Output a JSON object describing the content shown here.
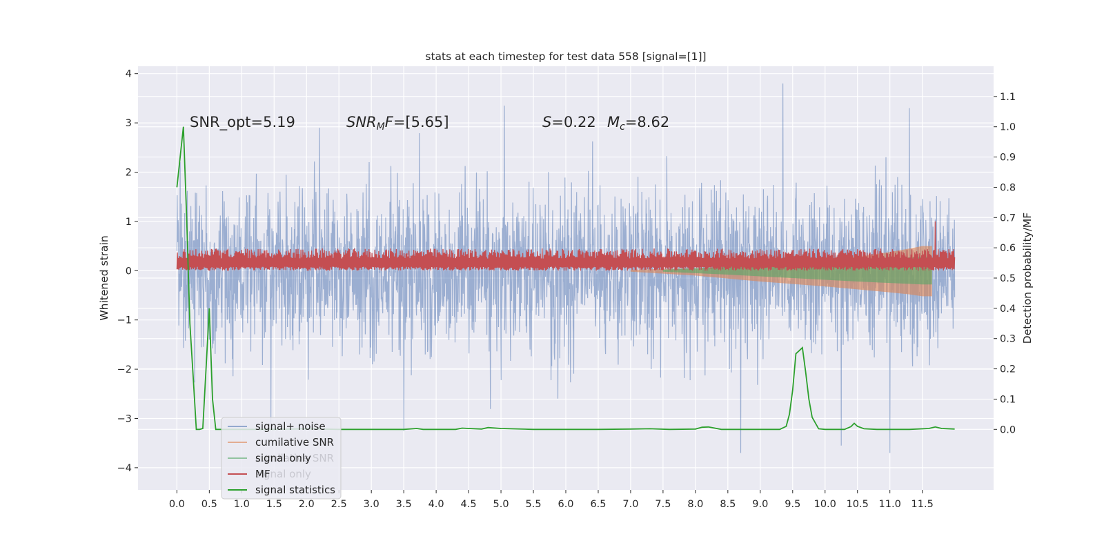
{
  "chart_data": {
    "type": "line",
    "title": "stats at each timestep for test data 558 [signal=[1]]",
    "xlabel": "",
    "ylabel": "Whitened strain",
    "ylabel_right": "Detection probability/MF",
    "xlim": [
      -0.6,
      12.6
    ],
    "ylim": [
      -4.45,
      4.15
    ],
    "ylim_right": [
      -0.2,
      1.2
    ],
    "x_ticks": [
      0.0,
      0.5,
      1.0,
      1.5,
      2.0,
      2.5,
      3.0,
      3.5,
      4.0,
      4.5,
      5.0,
      5.5,
      6.0,
      6.5,
      7.0,
      7.5,
      8.0,
      8.5,
      9.0,
      9.5,
      10.0,
      10.5,
      11.0,
      11.5
    ],
    "x_tick_labels": [
      "0.0",
      "0.5",
      "1.0",
      "1.5",
      "2.0",
      "2.5",
      "3.0",
      "3.5",
      "4.0",
      "4.5",
      "5.0",
      "5.5",
      "6.0",
      "6.5",
      "7.0",
      "7.5",
      "8.0",
      "8.5",
      "9.0",
      "9.5",
      "10.0",
      "10.5",
      "11.0",
      "11.5"
    ],
    "y_ticks": [
      4,
      3,
      2,
      1,
      0,
      -1,
      -2,
      -3,
      -4
    ],
    "y_tick_labels": [
      "4",
      "3",
      "2",
      "1",
      "0",
      "−1",
      "−2",
      "−3",
      "−4"
    ],
    "y_ticks_right": [
      1.1,
      1.0,
      0.9,
      0.8,
      0.7,
      0.6,
      0.5,
      0.4,
      0.3,
      0.2,
      0.1,
      0.0
    ],
    "y_tick_labels_right": [
      "1.1",
      "1.0",
      "0.9",
      "0.8",
      "0.7",
      "0.6",
      "0.5",
      "0.4",
      "0.3",
      "0.2",
      "0.1",
      "0.0"
    ],
    "annotations": {
      "snr_opt": "SNR_opt=5.19",
      "snr_mf_sym": "SNR",
      "snr_mf_sub": "M",
      "snr_mf_rest": "F=[5.65]",
      "s_sym": "S",
      "s_val": "=0.22",
      "mc_sym": "M",
      "mc_sub": "c",
      "mc_val": "=8.62"
    },
    "legend": {
      "position": "lower-left",
      "entries": [
        {
          "label": "signal+ noise",
          "color": "#4c72b0"
        },
        {
          "label": "cumilative SNR",
          "color": "#dd8452"
        },
        {
          "label": "signal only",
          "color": "#55a868"
        },
        {
          "label": "MF",
          "color": "#c44e52"
        },
        {
          "label": "signal statistics",
          "color": "#2ca02c"
        }
      ],
      "ghost_entries": [
        "cumilative SNR",
        "signal only"
      ]
    },
    "series": [
      {
        "name": "signal+ noise",
        "axis": "left",
        "color": "#4c72b0",
        "kind": "noise",
        "x_range": [
          0.0,
          12.0
        ],
        "sigma": 0.82,
        "notable_spikes": [
          [
            0.05,
            2.2
          ],
          [
            1.45,
            -3.1
          ],
          [
            3.5,
            -3.25
          ],
          [
            5.05,
            3.35
          ],
          [
            8.7,
            -3.7
          ],
          [
            9.35,
            3.8
          ],
          [
            10.25,
            -3.55
          ],
          [
            11.0,
            -3.7
          ],
          [
            11.3,
            3.3
          ]
        ]
      },
      {
        "name": "MF",
        "axis": "left",
        "color": "#c44e52",
        "kind": "band",
        "x_range": [
          0.0,
          12.0
        ],
        "base": 0.0,
        "typical_max": 0.45,
        "spike": [
          11.7,
          1.0
        ]
      },
      {
        "name": "cumilative SNR",
        "axis": "left",
        "color": "#dd8452",
        "kind": "envelope",
        "x": [
          7.0,
          8.0,
          9.0,
          10.0,
          10.5,
          11.0,
          11.3,
          11.5,
          11.65
        ],
        "upper": [
          0.02,
          0.05,
          0.1,
          0.2,
          0.28,
          0.38,
          0.45,
          0.5,
          0.5
        ],
        "lower": [
          -0.02,
          -0.1,
          -0.22,
          -0.32,
          -0.38,
          -0.44,
          -0.48,
          -0.52,
          -0.52
        ]
      },
      {
        "name": "signal only",
        "axis": "left",
        "color": "#55a868",
        "kind": "envelope",
        "x": [
          7.5,
          8.5,
          9.5,
          10.5,
          11.0,
          11.5,
          11.65
        ],
        "upper": [
          0.02,
          0.08,
          0.15,
          0.22,
          0.25,
          0.28,
          0.28
        ],
        "lower": [
          -0.02,
          -0.08,
          -0.15,
          -0.22,
          -0.25,
          -0.28,
          -0.28
        ]
      },
      {
        "name": "signal statistics",
        "axis": "right",
        "color": "#2ca02c",
        "kind": "line",
        "x": [
          0.0,
          0.05,
          0.1,
          0.15,
          0.2,
          0.25,
          0.3,
          0.35,
          0.4,
          0.45,
          0.5,
          0.55,
          0.6,
          0.8,
          1.0,
          1.5,
          2.0,
          2.5,
          3.0,
          3.5,
          3.7,
          3.8,
          4.0,
          4.3,
          4.4,
          4.5,
          4.7,
          4.8,
          5.0,
          5.5,
          6.0,
          6.5,
          7.0,
          7.3,
          7.6,
          8.0,
          8.1,
          8.2,
          8.4,
          8.8,
          9.0,
          9.3,
          9.4,
          9.45,
          9.5,
          9.55,
          9.6,
          9.65,
          9.7,
          9.75,
          9.8,
          9.9,
          10.0,
          10.3,
          10.4,
          10.45,
          10.5,
          10.6,
          10.8,
          11.0,
          11.3,
          11.6,
          11.7,
          11.8,
          12.0
        ],
        "y": [
          0.8,
          0.9,
          1.0,
          0.7,
          0.35,
          0.18,
          0.0,
          0.0,
          0.003,
          0.2,
          0.4,
          0.1,
          0.0,
          0.0,
          0.0,
          0.0,
          0.002,
          0.0,
          0.0,
          0.0,
          0.003,
          0.0,
          0.0,
          0.0,
          0.004,
          0.003,
          0.001,
          0.006,
          0.003,
          0.0,
          0.0,
          0.0,
          0.001,
          0.002,
          0.0,
          0.001,
          0.007,
          0.008,
          0.0,
          0.0,
          0.0,
          0.0,
          0.01,
          0.05,
          0.13,
          0.25,
          0.26,
          0.27,
          0.19,
          0.1,
          0.04,
          0.002,
          0.0,
          0.0,
          0.009,
          0.02,
          0.01,
          0.002,
          0.0,
          0.0,
          0.0,
          0.003,
          0.008,
          0.003,
          0.001
        ]
      }
    ]
  }
}
